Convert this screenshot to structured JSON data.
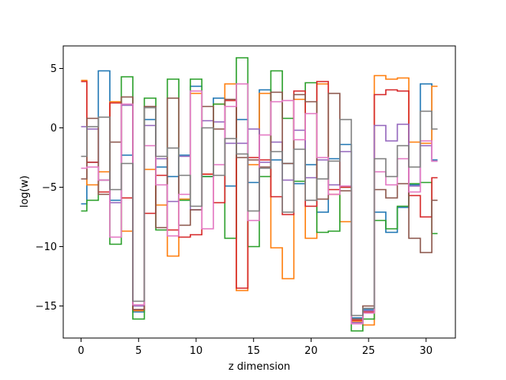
{
  "chart_data": {
    "type": "line",
    "drawstyle": "steps-mid",
    "xlabel": "z dimension",
    "ylabel": "log(w)",
    "xlim": [
      -1.55,
      32.55
    ],
    "ylim": [
      -17.7,
      6.9
    ],
    "xticks": [
      0,
      5,
      10,
      15,
      20,
      25,
      30
    ],
    "yticks": [
      5,
      0,
      -5,
      -10,
      -15
    ],
    "ytick_labels": [
      "5",
      "0",
      "−5",
      "−10",
      "−15"
    ],
    "grid": false,
    "legend": "none",
    "x": [
      0,
      1,
      2,
      3,
      4,
      5,
      6,
      7,
      8,
      9,
      10,
      11,
      12,
      13,
      14,
      15,
      16,
      17,
      18,
      19,
      20,
      21,
      22,
      23,
      24,
      25,
      26,
      27,
      28,
      29,
      30,
      31
    ],
    "series": [
      {
        "color": "#1f77b4",
        "values": [
          -6.4,
          -2.9,
          4.8,
          -6.1,
          -2.3,
          -15.5,
          0.7,
          -3.3,
          -4.1,
          -2.3,
          3.5,
          -4.1,
          2.5,
          -4.9,
          0.7,
          -4.6,
          3.2,
          -2.7,
          -3.0,
          -4.7,
          -3.1,
          -7.1,
          -2.6,
          -1.4,
          -16.0,
          -15.3,
          -7.1,
          -8.8,
          -6.7,
          -4.8,
          3.7,
          -2.7
        ]
      },
      {
        "color": "#ff7f0e",
        "values": [
          4.0,
          -4.8,
          -3.7,
          2.2,
          -8.7,
          -15.4,
          -3.5,
          -6.5,
          -10.8,
          -6.0,
          2.9,
          -3.9,
          2.0,
          3.7,
          -13.7,
          -3.1,
          2.9,
          -10.1,
          -12.7,
          2.4,
          -9.3,
          3.7,
          -5.6,
          -7.9,
          -16.3,
          -16.6,
          4.4,
          4.1,
          4.2,
          -1.2,
          -1.3,
          3.5
        ]
      },
      {
        "color": "#2ca02c",
        "values": [
          -7.0,
          -6.1,
          -4.4,
          -9.8,
          4.3,
          -16.1,
          2.5,
          -8.6,
          4.1,
          -6.1,
          4.1,
          -4.1,
          2.0,
          -9.3,
          5.9,
          -10.0,
          -4.1,
          4.8,
          0.8,
          -4.5,
          3.8,
          -8.8,
          -8.7,
          -5.0,
          -17.1,
          -16.1,
          -7.8,
          -8.5,
          -6.6,
          -4.7,
          -4.6,
          -8.9
        ]
      },
      {
        "color": "#d62728",
        "values": [
          3.9,
          -2.9,
          -5.4,
          2.1,
          -5.9,
          -15.3,
          -7.2,
          -4.0,
          -8.6,
          -9.2,
          -9.0,
          -3.9,
          -6.3,
          2.3,
          -13.5,
          -2.5,
          -2.7,
          -5.8,
          -7.3,
          3.1,
          -6.6,
          3.9,
          -5.2,
          -5.0,
          -16.2,
          -15.5,
          2.8,
          3.2,
          3.1,
          -5.7,
          -7.5,
          -4.2
        ]
      },
      {
        "color": "#9467bd",
        "values": [
          0.1,
          -0.1,
          -4.4,
          -6.3,
          1.9,
          -15.0,
          0.2,
          -2.6,
          -6.2,
          -2.4,
          -6.9,
          0.6,
          0.5,
          -1.3,
          -1.3,
          -0.1,
          -2.9,
          -1.2,
          -4.4,
          -0.2,
          -4.2,
          -2.7,
          -4.8,
          -2.0,
          -16.4,
          -15.4,
          0.2,
          -1.1,
          0.3,
          -4.9,
          -1.5,
          -2.8
        ]
      },
      {
        "color": "#8c564b",
        "values": [
          -4.3,
          0.8,
          -5.6,
          -1.2,
          2.6,
          -15.3,
          1.8,
          -8.4,
          2.5,
          -8.2,
          -6.9,
          1.8,
          -0.1,
          2.4,
          -2.5,
          -2.7,
          -3.3,
          3.0,
          -3.0,
          2.8,
          2.2,
          -6.0,
          2.9,
          -5.3,
          -16.1,
          -15.0,
          -5.2,
          -5.9,
          -4.7,
          -9.3,
          -10.5,
          -6.1
        ]
      },
      {
        "color": "#e377c2",
        "values": [
          -3.4,
          -3.3,
          -4.4,
          -9.2,
          2.0,
          -14.9,
          -1.5,
          -4.8,
          -9.1,
          -5.6,
          3.1,
          -8.5,
          -3.1,
          1.8,
          3.7,
          -7.8,
          -0.6,
          2.2,
          2.3,
          -1.0,
          1.2,
          -2.5,
          -5.6,
          -4.9,
          -16.5,
          -15.6,
          -3.7,
          -4.8,
          -2.6,
          -5.4,
          -1.1,
          -2.8
        ]
      },
      {
        "color": "#7f7f7f",
        "values": [
          -2.4,
          0.1,
          0.9,
          -5.2,
          -3.0,
          -14.6,
          1.7,
          -2.4,
          -1.7,
          -4.0,
          -6.6,
          0.0,
          -4.0,
          -0.9,
          -2.2,
          -7.0,
          -3.4,
          -2.0,
          -7.1,
          -1.8,
          -6.1,
          -4.3,
          -2.8,
          0.7,
          -15.8,
          -15.2,
          -2.6,
          -4.1,
          -1.5,
          -3.3,
          1.4,
          -0.1
        ]
      }
    ]
  }
}
